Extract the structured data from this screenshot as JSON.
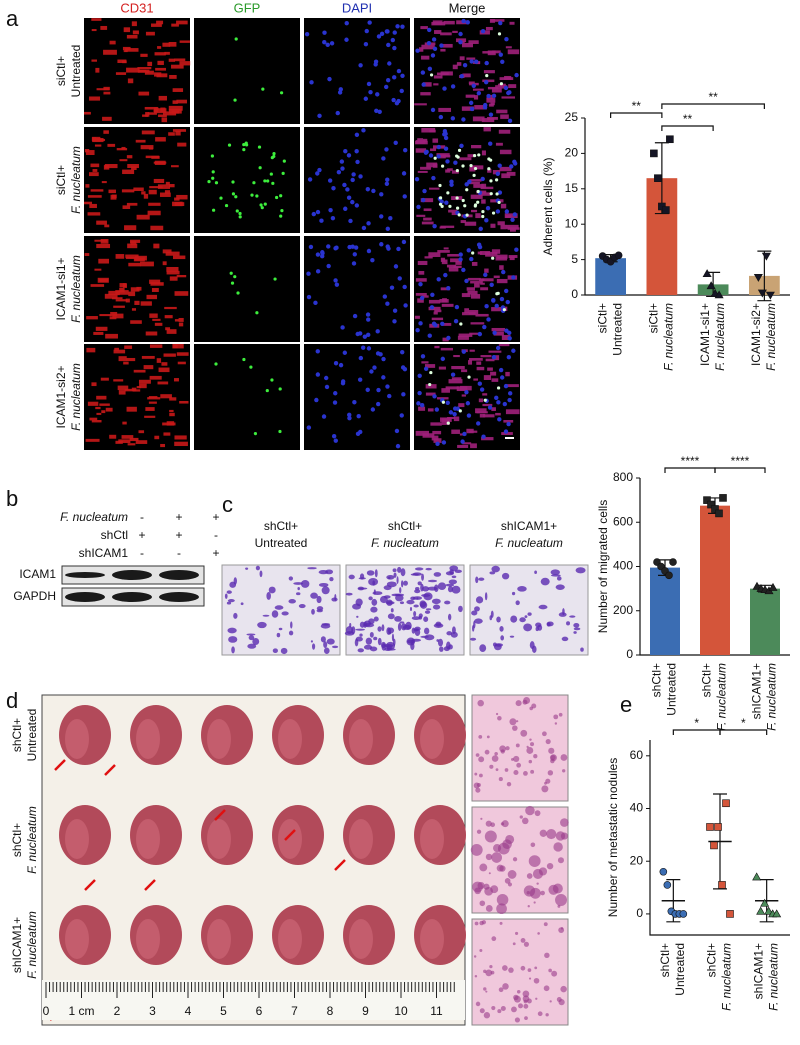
{
  "panel_labels": [
    "a",
    "b",
    "c",
    "d",
    "e"
  ],
  "panel_a": {
    "columns": [
      "CD31",
      "GFP",
      "DAPI",
      "Merge"
    ],
    "column_colors": [
      "#d42020",
      "#2a9a2a",
      "#2030b0",
      "#111111"
    ],
    "rows": [
      [
        "siCtl+",
        "Untreated"
      ],
      [
        "siCtl+",
        "F. nucleatum"
      ],
      [
        "ICAM1-si1+",
        "F. nucleatum"
      ],
      [
        "ICAM1-si2+",
        "F. nucleatum"
      ]
    ]
  },
  "panel_b": {
    "conditions": [
      {
        "label": "F. nucleatum",
        "signs": [
          "-",
          "+",
          "+"
        ]
      },
      {
        "label": "shCtl",
        "signs": [
          "+",
          "+",
          "-"
        ]
      },
      {
        "label": "shICAM1",
        "signs": [
          "-",
          "-",
          "+"
        ]
      }
    ],
    "bands": [
      "ICAM1",
      "GAPDH"
    ]
  },
  "panel_c": {
    "images": [
      [
        "shCtl+",
        "Untreated"
      ],
      [
        "shCtl+",
        "F. nucleatum"
      ],
      [
        "shICAM1+",
        "F. nucleatum"
      ]
    ]
  },
  "panel_d": {
    "rows": [
      [
        "shCtl+",
        "Untreated"
      ],
      [
        "shCtl+",
        "F. nucleatum"
      ],
      [
        "shICAM1+",
        "F. nucleatum"
      ]
    ],
    "ruler": [
      "0",
      "1 cm",
      "2",
      "3",
      "4",
      "5",
      "6",
      "7",
      "8",
      "9",
      "10",
      "11"
    ]
  },
  "chart_data": [
    {
      "type": "bar",
      "ylabel": "Adherent cells (%)",
      "categories": [
        [
          "siCtl+",
          "Untreated"
        ],
        [
          "siCtl+",
          "F. nucleatum"
        ],
        [
          "ICAM1-si1+",
          "F. nucleatum"
        ],
        [
          "ICAM1-si2+",
          "F. nucleatum"
        ]
      ],
      "values": [
        5.2,
        16.5,
        1.5,
        2.7
      ],
      "errors": [
        0.5,
        5,
        1.7,
        3.5
      ],
      "points": [
        [
          5.5,
          5.0,
          4.7,
          5.3,
          5.6
        ],
        [
          20,
          16.5,
          12.5,
          12,
          22
        ],
        [
          3,
          1.3,
          0.2,
          0
        ],
        [
          2.5,
          0.3,
          5.5,
          0
        ]
      ],
      "colors": [
        "#3b6db3",
        "#d4553a",
        "#4c8a5a",
        "#c9a374"
      ],
      "markers": [
        "circle",
        "square",
        "triangle",
        "triangle-down"
      ],
      "point_color": "#151525",
      "annotations": [
        "**",
        "**",
        "**"
      ],
      "ylim": [
        0,
        25
      ],
      "yticks": [
        0,
        5,
        10,
        15,
        20,
        25
      ]
    },
    {
      "type": "bar",
      "ylabel": "Number of  migrated cells",
      "categories": [
        [
          "shCtl+",
          "Untreated"
        ],
        [
          "shCtl+",
          "F. nucleatum"
        ],
        [
          "shICAM1+",
          "F. nucleatum"
        ]
      ],
      "values": [
        395,
        675,
        300
      ],
      "errors": [
        35,
        35,
        15
      ],
      "points": [
        [
          420,
          400,
          380,
          360,
          420
        ],
        [
          700,
          680,
          660,
          640,
          710
        ],
        [
          310,
          300,
          295,
          290,
          305
        ]
      ],
      "colors": [
        "#3b6db3",
        "#d4553a",
        "#4c8a5a"
      ],
      "markers": [
        "circle",
        "square",
        "triangle"
      ],
      "point_color": "#222222",
      "annotations": [
        "****",
        "****"
      ],
      "ylim": [
        0,
        800
      ],
      "yticks": [
        0,
        200,
        400,
        600,
        800
      ]
    },
    {
      "type": "strip",
      "ylabel": "Number of metastatic nodules",
      "categories": [
        [
          "shCtl+",
          "Untreated"
        ],
        [
          "shCtl+",
          "F. nucleatum"
        ],
        [
          "shICAM1+",
          "F. nucleatum"
        ]
      ],
      "values": [
        5,
        27.5,
        5
      ],
      "errors": [
        8,
        18,
        8
      ],
      "points": [
        [
          16,
          11,
          1,
          0,
          0,
          0
        ],
        [
          33,
          26,
          33,
          11,
          42,
          0
        ],
        [
          14,
          1,
          4,
          1,
          0,
          0
        ]
      ],
      "colors": [
        "#3b6db3",
        "#d4553a",
        "#4c8a5a"
      ],
      "markers": [
        "circle",
        "square",
        "triangle"
      ],
      "annotations": [
        "*",
        "*"
      ],
      "ylim": [
        -8,
        66
      ],
      "yticks": [
        0,
        20,
        40,
        60
      ]
    }
  ]
}
